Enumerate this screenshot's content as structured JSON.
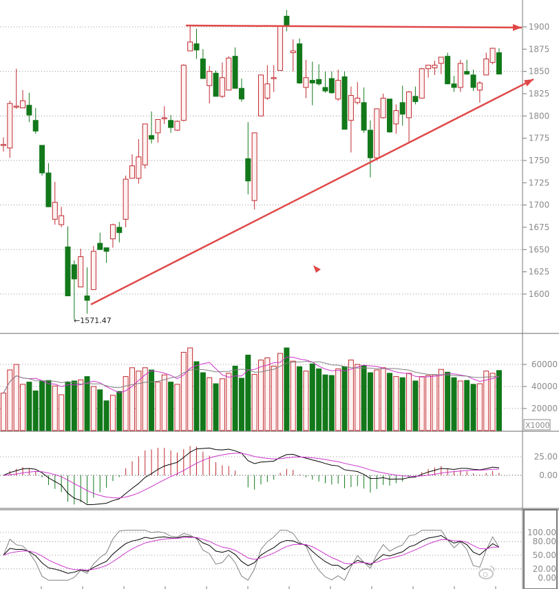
{
  "chart_data": {
    "type": "candlestick",
    "colors": {
      "up": "#c0282e",
      "up_fill": "#fff2f2",
      "down": "#12781a",
      "trendline": "#e04848",
      "ma_fast": "#cc33cc",
      "ma_slow": "#808080",
      "macd_dif": "#000000",
      "macd_dea": "#cc33cc",
      "kdj_k": "#000000",
      "kdj_d": "#cc33cc",
      "kdj_j": "#808080",
      "grid": "#777777",
      "axis_text": "#8a8a8a"
    },
    "price_axis": {
      "ticks": [
        "1900",
        "1875",
        "1850",
        "1825",
        "1800",
        "1775",
        "1750",
        "1725",
        "1700",
        "1675",
        "1650",
        "1625",
        "1600"
      ],
      "range": [
        1555,
        1930
      ],
      "grid_at": [
        1900,
        1850,
        1800,
        1750,
        1700,
        1650,
        1600
      ]
    },
    "low_annotation": "←1571.47",
    "low_value": 1571.47,
    "candles": [
      [
        1768,
        1776,
        1760,
        1768
      ],
      [
        1764,
        1817,
        1753,
        1814
      ],
      [
        1811,
        1853,
        1808,
        1811
      ],
      [
        1809,
        1829,
        1809,
        1817
      ],
      [
        1812,
        1826,
        1793,
        1801
      ],
      [
        1795,
        1809,
        1780,
        1783
      ],
      [
        1767,
        1767,
        1733,
        1736
      ],
      [
        1736,
        1747,
        1698,
        1698
      ],
      [
        1684,
        1726,
        1678,
        1703
      ],
      [
        1678,
        1698,
        1675,
        1688
      ],
      [
        1653,
        1676,
        1598,
        1598
      ],
      [
        1633,
        1638,
        1571.47,
        1617
      ],
      [
        1608,
        1651,
        1608,
        1642
      ],
      [
        1598,
        1630,
        1578,
        1593
      ],
      [
        1605,
        1654,
        1605,
        1648
      ],
      [
        1657,
        1669,
        1650,
        1650
      ],
      [
        1652,
        1652,
        1635,
        1648
      ],
      [
        1662,
        1679,
        1652,
        1678
      ],
      [
        1675,
        1681,
        1658,
        1669
      ],
      [
        1684,
        1733,
        1675,
        1729
      ],
      [
        1730,
        1757,
        1730,
        1744
      ],
      [
        1730,
        1774,
        1724,
        1754
      ],
      [
        1745,
        1791,
        1741,
        1791
      ],
      [
        1778,
        1805,
        1769,
        1774
      ],
      [
        1781,
        1796,
        1770,
        1796
      ],
      [
        1798,
        1811,
        1791,
        1798
      ],
      [
        1795,
        1801,
        1781,
        1787
      ],
      [
        1784,
        1795,
        1783,
        1794
      ],
      [
        1795,
        1858,
        1794,
        1857
      ],
      [
        1873,
        1902,
        1873,
        1883
      ],
      [
        1881,
        1898,
        1864,
        1874
      ],
      [
        1864,
        1875,
        1842,
        1842
      ],
      [
        1834,
        1856,
        1814,
        1850
      ],
      [
        1848,
        1851,
        1822,
        1822
      ],
      [
        1822,
        1860,
        1820,
        1843
      ],
      [
        1829,
        1867,
        1829,
        1865
      ],
      [
        1867,
        1877,
        1831,
        1831
      ],
      [
        1831,
        1842,
        1816,
        1819
      ],
      [
        1752,
        1793,
        1712,
        1727
      ],
      [
        1705,
        1781,
        1695,
        1781
      ],
      [
        1800,
        1846,
        1800,
        1846
      ],
      [
        1820,
        1857,
        1818,
        1836
      ],
      [
        1843,
        1857,
        1827,
        1843
      ],
      [
        1851,
        1901,
        1851,
        1901
      ],
      [
        1912,
        1919,
        1895,
        1902
      ],
      [
        1871,
        1886,
        1850,
        1873
      ],
      [
        1881,
        1887,
        1836,
        1837
      ],
      [
        1832,
        1863,
        1820,
        1843
      ],
      [
        1840,
        1861,
        1812,
        1837
      ],
      [
        1841,
        1858,
        1834,
        1836
      ],
      [
        1832,
        1850,
        1826,
        1828
      ],
      [
        1842,
        1850,
        1825,
        1826
      ],
      [
        1819,
        1852,
        1817,
        1840
      ],
      [
        1844,
        1850,
        1785,
        1785
      ],
      [
        1795,
        1833,
        1759,
        1823
      ],
      [
        1815,
        1838,
        1813,
        1820
      ],
      [
        1815,
        1832,
        1781,
        1784
      ],
      [
        1784,
        1795,
        1731,
        1753
      ],
      [
        1753,
        1808,
        1750,
        1808
      ],
      [
        1798,
        1825,
        1797,
        1820
      ],
      [
        1819,
        1819,
        1781,
        1782
      ],
      [
        1791,
        1813,
        1780,
        1806
      ],
      [
        1815,
        1834,
        1789,
        1802
      ],
      [
        1798,
        1828,
        1769,
        1827
      ],
      [
        1822,
        1833,
        1813,
        1816
      ],
      [
        1820,
        1854,
        1820,
        1853
      ],
      [
        1853,
        1857,
        1843,
        1857
      ],
      [
        1854,
        1862,
        1846,
        1857
      ],
      [
        1859,
        1866,
        1847,
        1866
      ],
      [
        1867,
        1871,
        1836,
        1836
      ],
      [
        1836,
        1845,
        1827,
        1832
      ],
      [
        1832,
        1863,
        1827,
        1859
      ],
      [
        1850,
        1863,
        1846,
        1847
      ],
      [
        1846,
        1852,
        1828,
        1832
      ],
      [
        1829,
        1839,
        1815,
        1837
      ],
      [
        1846,
        1871,
        1846,
        1864
      ],
      [
        1860,
        1876,
        1858,
        1876
      ],
      [
        1871,
        1876,
        1847,
        1847
      ]
    ],
    "candle_fields": [
      "open",
      "high",
      "low",
      "close"
    ],
    "volume": {
      "ticks": [
        "60000",
        "40000",
        "20000"
      ],
      "unit_label": "X1000",
      "values": [
        34,
        55,
        60,
        42,
        44,
        36,
        45,
        45.5,
        40.5,
        32.5,
        44,
        45,
        46,
        49,
        40,
        37,
        27,
        32,
        35.5,
        49,
        57,
        54,
        57,
        55,
        44,
        50.5,
        44,
        42,
        71,
        75,
        62.5,
        52.5,
        48,
        42.5,
        47,
        52,
        58.5,
        47.5,
        68.5,
        51,
        64,
        66,
        58.5,
        70,
        75,
        63,
        58,
        54,
        60.5,
        56,
        50.5,
        50,
        56,
        58,
        64,
        60,
        59,
        52.5,
        55,
        57,
        52,
        49,
        48,
        52,
        45,
        49,
        50,
        50.5,
        55.5,
        53,
        48,
        45,
        45.5,
        42,
        42.5,
        54,
        52,
        54.5
      ],
      "range": [
        0,
        85
      ]
    },
    "macd": {
      "ticks": [
        "25.00",
        "0.00"
      ]
    },
    "kdj": {
      "ticks": [
        "100.00",
        "80.00",
        "50.00",
        "20.00",
        "0.00"
      ]
    },
    "annotations": {
      "resistance_line": "horizontal at ~1900",
      "support_line": "rising trendline from the 1571.47 low"
    }
  }
}
